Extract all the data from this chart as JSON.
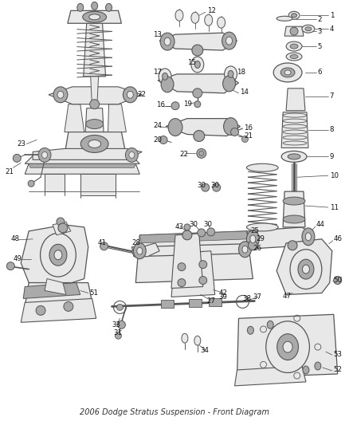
{
  "title": "2006 Dodge Stratus Suspension - Front Diagram",
  "background_color": "#ffffff",
  "fig_width": 4.38,
  "fig_height": 5.33,
  "dpi": 100,
  "title_fontsize": 7.0,
  "title_color": "#333333",
  "line_color": "#444444",
  "label_color": "#111111",
  "label_fontsize": 6.2,
  "diagram_color": "#555555",
  "gray_fill": "#cccccc",
  "light_gray": "#e8e8e8",
  "mid_gray": "#aaaaaa",
  "dark_gray": "#666666"
}
